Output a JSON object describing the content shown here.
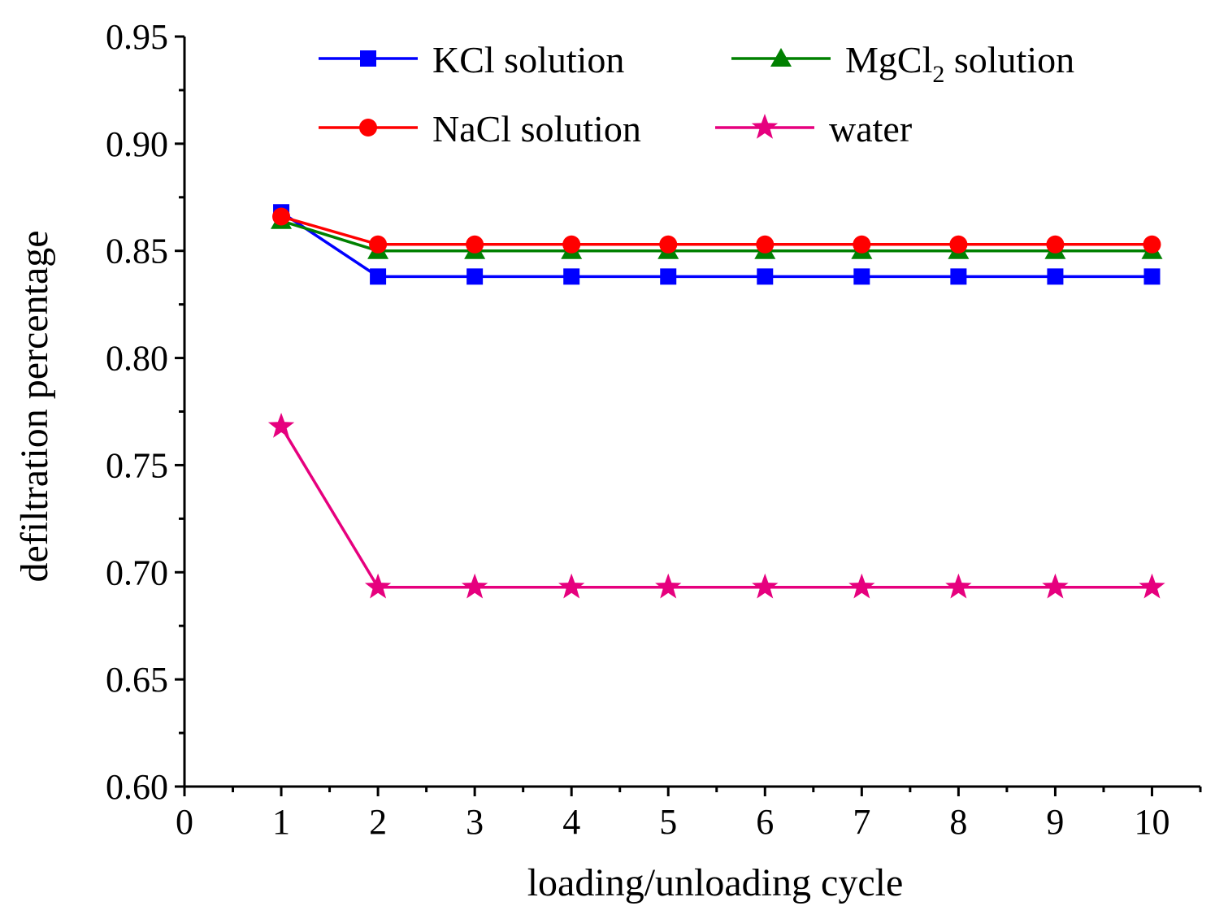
{
  "chart_data": {
    "type": "line",
    "title": "",
    "xlabel": "loading/unloading cycle",
    "ylabel": "defiltration percentage",
    "xlim": [
      0,
      10.5
    ],
    "ylim": [
      0.6,
      0.95
    ],
    "x_ticks": [
      0,
      1,
      2,
      3,
      4,
      5,
      6,
      7,
      8,
      9,
      10
    ],
    "x_tick_labels": [
      "0",
      "1",
      "2",
      "3",
      "4",
      "5",
      "6",
      "7",
      "8",
      "9",
      "10"
    ],
    "y_ticks": [
      0.6,
      0.65,
      0.7,
      0.75,
      0.8,
      0.85,
      0.9,
      0.95
    ],
    "y_tick_labels": [
      "0.60",
      "0.65",
      "0.70",
      "0.75",
      "0.80",
      "0.85",
      "0.90",
      "0.95"
    ],
    "grid": false,
    "legend_position": "top",
    "x": [
      1,
      2,
      3,
      4,
      5,
      6,
      7,
      8,
      9,
      10
    ],
    "series": [
      {
        "name": "KCl solution",
        "color": "#0000ff",
        "marker": "square",
        "values": [
          0.868,
          0.838,
          0.838,
          0.838,
          0.838,
          0.838,
          0.838,
          0.838,
          0.838,
          0.838
        ]
      },
      {
        "name": "MgCl",
        "name_subscript": "2",
        "name_suffix": " solution",
        "color": "#008000",
        "marker": "triangle",
        "values": [
          0.864,
          0.85,
          0.85,
          0.85,
          0.85,
          0.85,
          0.85,
          0.85,
          0.85,
          0.85
        ]
      },
      {
        "name": "NaCl solution",
        "color": "#ff0000",
        "marker": "circle",
        "values": [
          0.866,
          0.853,
          0.853,
          0.853,
          0.853,
          0.853,
          0.853,
          0.853,
          0.853,
          0.853
        ]
      },
      {
        "name": "water",
        "color": "#e6007e",
        "marker": "star",
        "values": [
          0.768,
          0.693,
          0.693,
          0.693,
          0.693,
          0.693,
          0.693,
          0.693,
          0.693,
          0.693
        ]
      }
    ]
  }
}
